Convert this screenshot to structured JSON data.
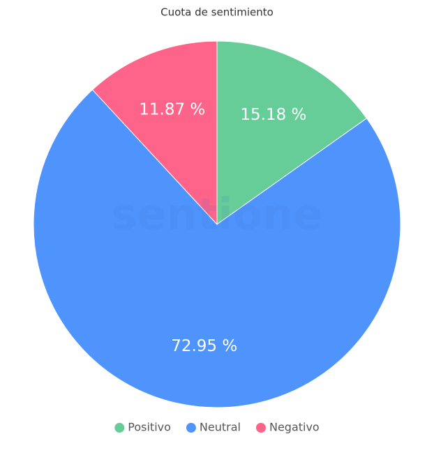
{
  "chart_data": {
    "type": "pie",
    "title": "Cuota de sentimiento",
    "watermark": "sentione",
    "categories": [
      "Positivo",
      "Neutral",
      "Negativo"
    ],
    "values": [
      15.18,
      72.95,
      11.87
    ],
    "value_labels": [
      "15.18 %",
      "72.95 %",
      "11.87 %"
    ],
    "colors": [
      "#66cd99",
      "#4f94fd",
      "#fe6389"
    ],
    "legend": "bottom"
  }
}
